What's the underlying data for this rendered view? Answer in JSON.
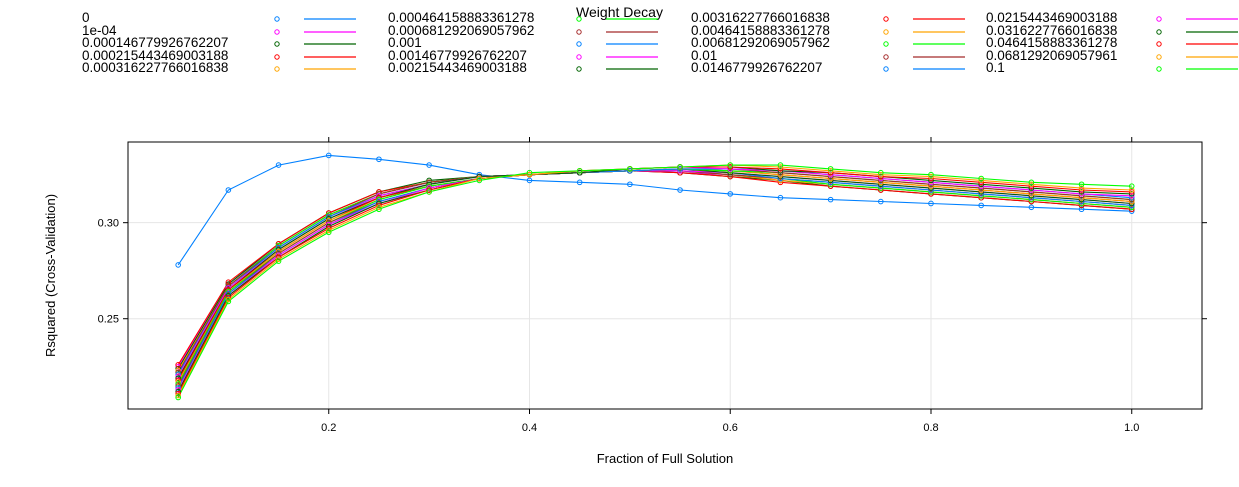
{
  "chart_data": {
    "type": "line",
    "legend_title": "Weight Decay",
    "legend_placement": "top",
    "xlabel": "Fraction of Full Solution",
    "ylabel": "Rsquared (Cross-Validation)",
    "xlim": [
      0.0,
      1.07
    ],
    "ylim": [
      0.203,
      0.342
    ],
    "grid": true,
    "x_ticks": [
      {
        "value": 0.2,
        "label": "0.2"
      },
      {
        "value": 0.4,
        "label": "0.4"
      },
      {
        "value": 0.6,
        "label": "0.6"
      },
      {
        "value": 0.8,
        "label": "0.8"
      },
      {
        "value": 1.0,
        "label": "1.0"
      }
    ],
    "y_ticks": [
      {
        "value": 0.25,
        "label": "0.25"
      },
      {
        "value": 0.3,
        "label": "0.30"
      }
    ],
    "x": [
      0.05,
      0.1,
      0.15,
      0.2,
      0.25,
      0.3,
      0.35,
      0.4,
      0.45,
      0.5,
      0.55,
      0.6,
      0.65,
      0.7,
      0.75,
      0.8,
      0.85,
      0.9,
      0.95,
      1.0
    ],
    "series": [
      {
        "name": "0",
        "color": "#0080ff",
        "values": [
          0.278,
          0.317,
          0.33,
          0.335,
          0.333,
          0.33,
          0.325,
          0.322,
          0.321,
          0.32,
          0.317,
          0.315,
          0.313,
          0.312,
          0.311,
          0.31,
          0.309,
          0.308,
          0.307,
          0.306
        ]
      },
      {
        "name": "1e-04",
        "color": "#ff00ff",
        "values": [
          0.225,
          0.268,
          0.288,
          0.304,
          0.315,
          0.321,
          0.324,
          0.325,
          0.326,
          0.327,
          0.326,
          0.325,
          0.322,
          0.32,
          0.318,
          0.316,
          0.314,
          0.312,
          0.31,
          0.308
        ]
      },
      {
        "name": "0.000146779926762207",
        "color": "#006400",
        "values": [
          0.224,
          0.268,
          0.289,
          0.305,
          0.316,
          0.322,
          0.324,
          0.325,
          0.326,
          0.327,
          0.326,
          0.324,
          0.322,
          0.319,
          0.317,
          0.315,
          0.313,
          0.311,
          0.309,
          0.307
        ]
      },
      {
        "name": "0.000215443469003188",
        "color": "#ff0000",
        "values": [
          0.226,
          0.269,
          0.289,
          0.305,
          0.316,
          0.321,
          0.324,
          0.325,
          0.326,
          0.327,
          0.326,
          0.324,
          0.321,
          0.319,
          0.317,
          0.315,
          0.313,
          0.311,
          0.309,
          0.307
        ]
      },
      {
        "name": "0.000316227766016838",
        "color": "#ffa500",
        "values": [
          0.223,
          0.267,
          0.288,
          0.304,
          0.315,
          0.321,
          0.324,
          0.325,
          0.326,
          0.327,
          0.327,
          0.325,
          0.322,
          0.32,
          0.318,
          0.316,
          0.314,
          0.312,
          0.31,
          0.308
        ]
      },
      {
        "name": "0.000464158883361278",
        "color": "#00ff00",
        "values": [
          0.222,
          0.267,
          0.288,
          0.304,
          0.315,
          0.321,
          0.324,
          0.325,
          0.326,
          0.327,
          0.327,
          0.325,
          0.323,
          0.32,
          0.318,
          0.316,
          0.314,
          0.312,
          0.31,
          0.308
        ]
      },
      {
        "name": "0.000681292069057962",
        "color": "#a52a2a",
        "values": [
          0.222,
          0.267,
          0.287,
          0.303,
          0.315,
          0.321,
          0.324,
          0.325,
          0.326,
          0.327,
          0.327,
          0.325,
          0.323,
          0.321,
          0.319,
          0.317,
          0.315,
          0.313,
          0.311,
          0.309
        ]
      },
      {
        "name": "0.001",
        "color": "#0080ff",
        "values": [
          0.221,
          0.266,
          0.287,
          0.303,
          0.314,
          0.32,
          0.324,
          0.325,
          0.326,
          0.327,
          0.327,
          0.326,
          0.323,
          0.321,
          0.319,
          0.317,
          0.315,
          0.313,
          0.311,
          0.309
        ]
      },
      {
        "name": "0.00146779926762207",
        "color": "#ff00ff",
        "values": [
          0.22,
          0.266,
          0.286,
          0.302,
          0.314,
          0.32,
          0.324,
          0.325,
          0.326,
          0.327,
          0.327,
          0.326,
          0.324,
          0.322,
          0.32,
          0.318,
          0.316,
          0.314,
          0.312,
          0.31
        ]
      },
      {
        "name": "0.00215443469003188",
        "color": "#006400",
        "values": [
          0.219,
          0.265,
          0.286,
          0.302,
          0.313,
          0.32,
          0.324,
          0.325,
          0.326,
          0.327,
          0.328,
          0.326,
          0.324,
          0.322,
          0.32,
          0.318,
          0.316,
          0.314,
          0.312,
          0.31
        ]
      },
      {
        "name": "0.00316227766016838",
        "color": "#ff0000",
        "values": [
          0.218,
          0.265,
          0.285,
          0.301,
          0.313,
          0.319,
          0.323,
          0.325,
          0.326,
          0.327,
          0.328,
          0.327,
          0.325,
          0.323,
          0.321,
          0.319,
          0.317,
          0.315,
          0.313,
          0.311
        ]
      },
      {
        "name": "0.00464158883361278",
        "color": "#ffa500",
        "values": [
          0.217,
          0.264,
          0.285,
          0.301,
          0.312,
          0.319,
          0.323,
          0.325,
          0.326,
          0.327,
          0.328,
          0.327,
          0.325,
          0.323,
          0.321,
          0.319,
          0.317,
          0.315,
          0.313,
          0.311
        ]
      },
      {
        "name": "0.00681292069057962",
        "color": "#00ff00",
        "values": [
          0.216,
          0.264,
          0.284,
          0.3,
          0.312,
          0.319,
          0.323,
          0.325,
          0.326,
          0.327,
          0.328,
          0.327,
          0.326,
          0.324,
          0.322,
          0.32,
          0.318,
          0.316,
          0.314,
          0.312
        ]
      },
      {
        "name": "0.01",
        "color": "#a52a2a",
        "values": [
          0.215,
          0.263,
          0.284,
          0.3,
          0.311,
          0.318,
          0.323,
          0.325,
          0.326,
          0.327,
          0.328,
          0.328,
          0.326,
          0.324,
          0.322,
          0.32,
          0.318,
          0.316,
          0.314,
          0.312
        ]
      },
      {
        "name": "0.0146779926762207",
        "color": "#0080ff",
        "values": [
          0.214,
          0.263,
          0.283,
          0.299,
          0.311,
          0.318,
          0.323,
          0.325,
          0.326,
          0.327,
          0.328,
          0.328,
          0.327,
          0.325,
          0.323,
          0.321,
          0.319,
          0.317,
          0.315,
          0.313
        ]
      },
      {
        "name": "0.0215443469003188",
        "color": "#ff00ff",
        "values": [
          0.213,
          0.262,
          0.283,
          0.299,
          0.31,
          0.318,
          0.323,
          0.325,
          0.326,
          0.328,
          0.329,
          0.328,
          0.327,
          0.325,
          0.323,
          0.321,
          0.319,
          0.317,
          0.315,
          0.314
        ]
      },
      {
        "name": "0.0316227766016838",
        "color": "#006400",
        "values": [
          0.212,
          0.262,
          0.282,
          0.298,
          0.31,
          0.317,
          0.323,
          0.325,
          0.326,
          0.328,
          0.329,
          0.329,
          0.327,
          0.326,
          0.324,
          0.322,
          0.32,
          0.318,
          0.316,
          0.315
        ]
      },
      {
        "name": "0.0464158883361278",
        "color": "#ff0000",
        "values": [
          0.211,
          0.261,
          0.282,
          0.297,
          0.309,
          0.317,
          0.323,
          0.325,
          0.327,
          0.328,
          0.329,
          0.329,
          0.328,
          0.326,
          0.324,
          0.323,
          0.321,
          0.319,
          0.317,
          0.316
        ]
      },
      {
        "name": "0.0681292069057961",
        "color": "#ffa500",
        "values": [
          0.21,
          0.26,
          0.281,
          0.296,
          0.308,
          0.316,
          0.323,
          0.325,
          0.327,
          0.328,
          0.329,
          0.33,
          0.329,
          0.327,
          0.325,
          0.324,
          0.322,
          0.32,
          0.318,
          0.317
        ]
      },
      {
        "name": "0.1",
        "color": "#00ff00",
        "values": [
          0.209,
          0.259,
          0.28,
          0.295,
          0.307,
          0.316,
          0.322,
          0.326,
          0.327,
          0.328,
          0.329,
          0.33,
          0.33,
          0.328,
          0.326,
          0.325,
          0.323,
          0.321,
          0.32,
          0.319
        ]
      }
    ]
  }
}
